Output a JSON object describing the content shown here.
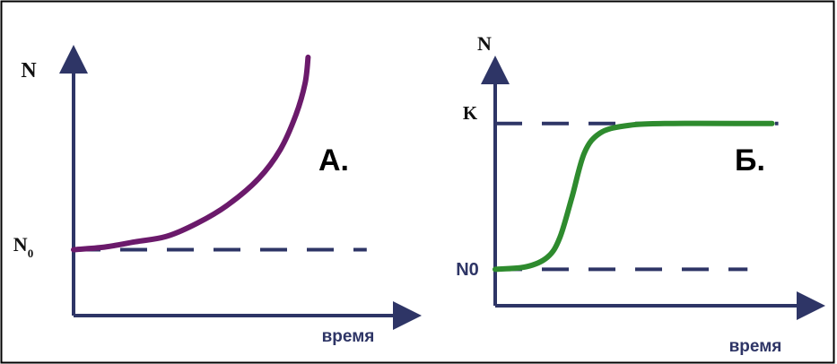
{
  "chart_data": [
    {
      "type": "line",
      "panel_label": "А.",
      "ylabel": "N",
      "xlabel": "время",
      "y_tick_labels": {
        "base": "N",
        "subscript": "0"
      },
      "ylim": [
        0,
        1
      ],
      "xlim": [
        0,
        1
      ],
      "grid": false,
      "reference_lines": [
        {
          "y": 0.25,
          "style": "dashed",
          "color": "#2e3566"
        }
      ],
      "series": [
        {
          "color": "#6b1a6b",
          "points": [
            {
              "x": 0.0,
              "y": 0.25
            },
            {
              "x": 0.1,
              "y": 0.26
            },
            {
              "x": 0.2,
              "y": 0.28
            },
            {
              "x": 0.3,
              "y": 0.3
            },
            {
              "x": 0.4,
              "y": 0.35
            },
            {
              "x": 0.5,
              "y": 0.42
            },
            {
              "x": 0.6,
              "y": 0.52
            },
            {
              "x": 0.67,
              "y": 0.63
            },
            {
              "x": 0.72,
              "y": 0.76
            },
            {
              "x": 0.75,
              "y": 0.88
            },
            {
              "x": 0.76,
              "y": 0.98
            }
          ]
        }
      ]
    },
    {
      "type": "line",
      "panel_label": "Б.",
      "ylabel": "N",
      "xlabel": "время",
      "y_tick_labels": {
        "lower": "N0",
        "upper": "K"
      },
      "ylim": [
        0,
        1
      ],
      "xlim": [
        0,
        1
      ],
      "grid": false,
      "reference_lines": [
        {
          "y": 0.75,
          "label": "K",
          "style": "dashed",
          "color": "#2e3566"
        },
        {
          "y": 0.15,
          "label": "N0",
          "style": "dashed",
          "color": "#2e3566"
        }
      ],
      "series": [
        {
          "color": "#2e8b2e",
          "points": [
            {
              "x": 0.0,
              "y": 0.15
            },
            {
              "x": 0.1,
              "y": 0.16
            },
            {
              "x": 0.17,
              "y": 0.2
            },
            {
              "x": 0.21,
              "y": 0.28
            },
            {
              "x": 0.25,
              "y": 0.45
            },
            {
              "x": 0.29,
              "y": 0.63
            },
            {
              "x": 0.34,
              "y": 0.71
            },
            {
              "x": 0.42,
              "y": 0.74
            },
            {
              "x": 0.55,
              "y": 0.75
            },
            {
              "x": 0.9,
              "y": 0.75
            }
          ]
        }
      ]
    }
  ]
}
